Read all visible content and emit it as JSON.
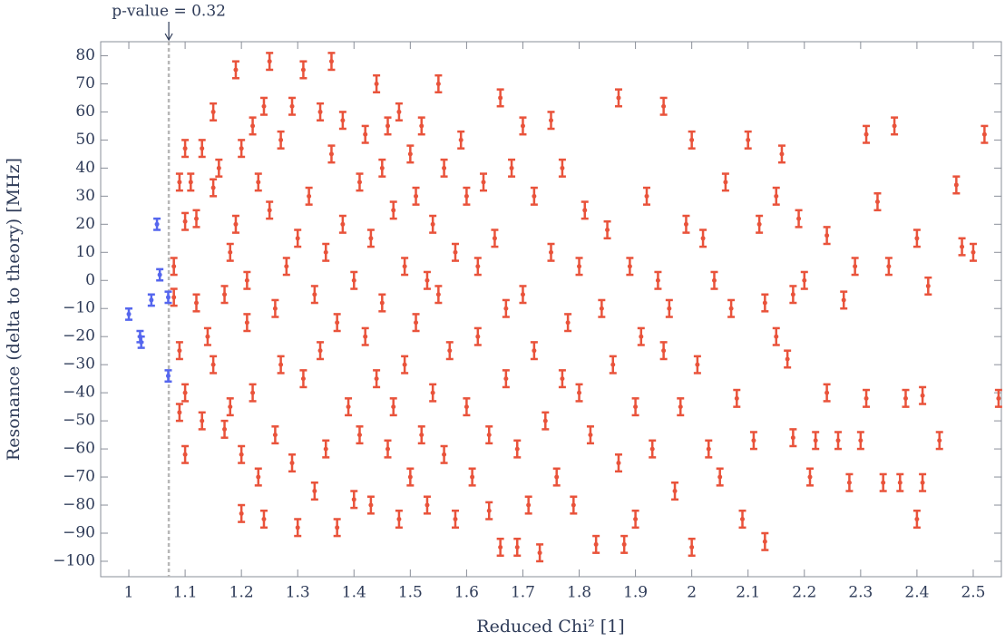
{
  "chart_data": {
    "type": "errorbar-scatter",
    "x_label": "Reduced Chi² [1]",
    "y_label": "Resonance (delta to theory) [MHz]",
    "xlim": [
      0.95,
      2.55
    ],
    "ylim": [
      -105.5,
      85
    ],
    "xticks": [
      1,
      1.1,
      1.2,
      1.3,
      1.4,
      1.5,
      1.6,
      1.7,
      1.8,
      1.9,
      2,
      2.1,
      2.2,
      2.3,
      2.4,
      2.5
    ],
    "yticks": [
      {
        "value": -100,
        "label": "−100"
      },
      {
        "value": -90,
        "label": "−90"
      },
      {
        "value": -80,
        "label": "−80"
      },
      {
        "value": -70,
        "label": "−70"
      },
      {
        "value": -60,
        "label": "−60"
      },
      {
        "value": -50,
        "label": "−50"
      },
      {
        "value": -40,
        "label": "−40"
      },
      {
        "value": -30,
        "label": "−30"
      },
      {
        "value": -20,
        "label": "−20"
      },
      {
        "value": -10,
        "label": "−10"
      },
      0,
      10,
      20,
      30,
      40,
      50,
      60,
      70,
      80
    ],
    "threshold": {
      "x": 1.071,
      "label": "p-value = 0.32"
    },
    "series": [
      {
        "color": "#5566ee",
        "error": 2,
        "x": [
          1.0,
          1.02,
          1.022,
          1.04,
          1.05,
          1.055,
          1.07,
          1.07
        ],
        "values": [
          -12,
          -20,
          -22,
          -7,
          20,
          2,
          -6,
          -34
        ]
      },
      {
        "color": "#e9533b",
        "error": 3,
        "x": [
          1.08,
          1.08,
          1.09,
          1.09,
          1.09,
          1.1,
          1.1,
          1.1,
          1.1,
          1.11,
          1.12,
          1.12,
          1.13,
          1.13,
          1.14,
          1.15,
          1.15,
          1.15,
          1.16,
          1.17,
          1.17,
          1.18,
          1.18,
          1.19,
          1.19,
          1.2,
          1.2,
          1.2,
          1.21,
          1.21,
          1.22,
          1.22,
          1.23,
          1.23,
          1.24,
          1.24,
          1.25,
          1.25,
          1.26,
          1.26,
          1.27,
          1.27,
          1.28,
          1.29,
          1.29,
          1.3,
          1.3,
          1.31,
          1.31,
          1.32,
          1.33,
          1.33,
          1.34,
          1.34,
          1.35,
          1.35,
          1.36,
          1.36,
          1.37,
          1.37,
          1.38,
          1.38,
          1.39,
          1.4,
          1.4,
          1.41,
          1.41,
          1.42,
          1.42,
          1.43,
          1.43,
          1.44,
          1.44,
          1.45,
          1.45,
          1.46,
          1.46,
          1.47,
          1.47,
          1.48,
          1.48,
          1.49,
          1.49,
          1.5,
          1.5,
          1.51,
          1.51,
          1.52,
          1.52,
          1.53,
          1.53,
          1.54,
          1.54,
          1.55,
          1.55,
          1.56,
          1.56,
          1.57,
          1.58,
          1.58,
          1.59,
          1.6,
          1.6,
          1.61,
          1.62,
          1.62,
          1.63,
          1.64,
          1.64,
          1.65,
          1.66,
          1.66,
          1.67,
          1.67,
          1.68,
          1.69,
          1.69,
          1.7,
          1.7,
          1.71,
          1.72,
          1.72,
          1.73,
          1.74,
          1.75,
          1.75,
          1.76,
          1.77,
          1.77,
          1.78,
          1.79,
          1.8,
          1.8,
          1.81,
          1.82,
          1.83,
          1.84,
          1.85,
          1.86,
          1.87,
          1.87,
          1.88,
          1.89,
          1.9,
          1.9,
          1.91,
          1.92,
          1.93,
          1.94,
          1.95,
          1.95,
          1.96,
          1.97,
          1.98,
          1.99,
          2.0,
          2.0,
          2.01,
          2.02,
          2.03,
          2.04,
          2.05,
          2.06,
          2.07,
          2.08,
          2.09,
          2.1,
          2.11,
          2.12,
          2.13,
          2.13,
          2.15,
          2.15,
          2.16,
          2.17,
          2.18,
          2.18,
          2.19,
          2.2,
          2.21,
          2.22,
          2.24,
          2.24,
          2.26,
          2.27,
          2.28,
          2.29,
          2.3,
          2.31,
          2.31,
          2.33,
          2.34,
          2.35,
          2.36,
          2.37,
          2.38,
          2.4,
          2.4,
          2.41,
          2.41,
          2.42,
          2.44,
          2.47,
          2.48,
          2.5,
          2.52,
          2.545
        ],
        "values": [
          -6,
          5,
          -25,
          -47,
          35,
          47,
          21,
          -40,
          -62,
          35,
          22,
          -8,
          -50,
          47,
          -20,
          60,
          33,
          -30,
          40,
          -53,
          -5,
          10,
          -45,
          75,
          20,
          -62,
          47,
          -83,
          -15,
          0,
          55,
          -40,
          -70,
          35,
          62,
          -85,
          78,
          25,
          -10,
          -55,
          50,
          -30,
          5,
          -65,
          62,
          -88,
          15,
          -35,
          75,
          30,
          -5,
          -75,
          60,
          -25,
          10,
          -60,
          78,
          45,
          -88,
          -15,
          20,
          57,
          -45,
          -78,
          0,
          35,
          -55,
          52,
          -20,
          -80,
          15,
          70,
          -35,
          40,
          -8,
          -60,
          55,
          25,
          -45,
          -85,
          60,
          5,
          -30,
          45,
          -70,
          -15,
          30,
          -55,
          55,
          0,
          -80,
          20,
          -40,
          70,
          -5,
          40,
          -62,
          -25,
          10,
          -85,
          50,
          -45,
          30,
          -70,
          5,
          -20,
          35,
          -55,
          -82,
          15,
          65,
          -95,
          -10,
          -35,
          40,
          -60,
          -95,
          55,
          -5,
          -80,
          30,
          -25,
          -97,
          -50,
          10,
          57,
          -70,
          -35,
          40,
          -15,
          -80,
          -40,
          5,
          25,
          -55,
          -94,
          -10,
          18,
          -30,
          65,
          -65,
          -94,
          5,
          -45,
          -85,
          -20,
          30,
          -60,
          0,
          62,
          -25,
          -10,
          -75,
          -45,
          20,
          -95,
          50,
          -30,
          15,
          -60,
          0,
          -70,
          35,
          -10,
          -42,
          -85,
          50,
          -57,
          20,
          -8,
          -93,
          -20,
          30,
          45,
          -28,
          -56,
          -5,
          22,
          0,
          -70,
          -57,
          -40,
          16,
          -57,
          -7,
          -72,
          5,
          -57,
          -42,
          52,
          28,
          -72,
          5,
          55,
          -72,
          -42,
          -85,
          15,
          -72,
          -41,
          -2,
          -57,
          34,
          12,
          10,
          52,
          -42
        ]
      }
    ]
  }
}
